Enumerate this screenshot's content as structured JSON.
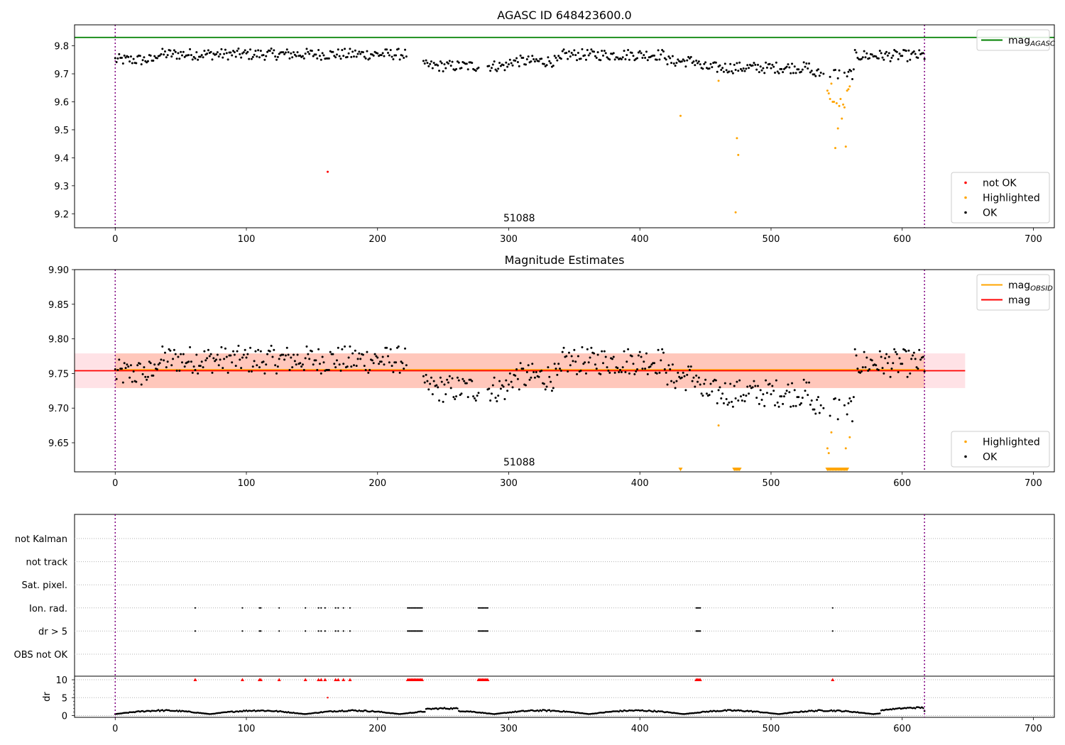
{
  "chart_data": [
    {
      "type": "scatter",
      "title": "AGASC ID 648423600.0",
      "xlim": [
        -31,
        716
      ],
      "ylim": [
        9.15,
        9.875
      ],
      "xticks": [
        0,
        100,
        200,
        300,
        400,
        500,
        600,
        700
      ],
      "yticks": [
        9.2,
        9.3,
        9.4,
        9.5,
        9.6,
        9.7,
        9.8
      ],
      "ytick_format": 1,
      "obs_boundaries": [
        0,
        617
      ],
      "obsid_label": {
        "text": "51088",
        "x": 308
      },
      "hlines": [
        {
          "name": "mag_AGASC",
          "y": 9.83,
          "color": "#008000"
        }
      ],
      "series": [
        {
          "name": "not OK",
          "color": "#ff0000",
          "x": [
            162
          ],
          "y": [
            9.35
          ]
        },
        {
          "name": "Highlighted",
          "color": "#ffa500",
          "x": [
            431,
            460,
            473,
            474,
            475,
            543,
            544,
            545,
            546,
            547,
            548,
            549,
            550,
            551,
            552,
            553,
            554,
            555,
            556,
            557,
            558,
            559,
            560
          ],
          "y": [
            9.55,
            9.675,
            9.205,
            9.47,
            9.41,
            9.64,
            9.63,
            9.61,
            9.665,
            9.6,
            9.6,
            9.435,
            9.595,
            9.505,
            9.585,
            9.61,
            9.54,
            9.59,
            9.58,
            9.44,
            9.64,
            9.645,
            9.655
          ]
        },
        {
          "name": "OK",
          "color": "#000000",
          "gen": "mag",
          "offset": 0
        }
      ],
      "legends": [
        {
          "corner": "top-right",
          "items": [
            {
              "label": "mag",
              "sub": "AGASC",
              "kind": "line",
              "color": "#008000"
            }
          ]
        },
        {
          "corner": "bottom-right",
          "items": [
            {
              "label": "not OK",
              "kind": "dot",
              "color": "#ff0000"
            },
            {
              "label": "Highlighted",
              "kind": "dot",
              "color": "#ffa500"
            },
            {
              "label": "OK",
              "kind": "dot",
              "color": "#000000"
            }
          ]
        }
      ]
    },
    {
      "type": "scatter",
      "title": "Magnitude Estimates",
      "xlim": [
        -31,
        716
      ],
      "ylim": [
        9.608,
        9.9
      ],
      "xticks": [
        0,
        100,
        200,
        300,
        400,
        500,
        600,
        700
      ],
      "yticks": [
        9.65,
        9.7,
        9.75,
        9.8,
        9.85,
        9.9
      ],
      "ytick_format": 2,
      "obs_boundaries": [
        0,
        617
      ],
      "obsid_label": {
        "text": "51088",
        "x": 308
      },
      "bands": [
        {
          "x0": -31,
          "x1": 648,
          "y0": 9.729,
          "y1": 9.779,
          "color": "#ffb6c1",
          "opacity": 0.4
        },
        {
          "x0": 0,
          "x1": 617,
          "y0": 9.729,
          "y1": 9.779,
          "color": "#ffa07a",
          "opacity": 0.4
        }
      ],
      "hlines": [
        {
          "name": "mag_OBSID",
          "y": 9.755,
          "x0": 0,
          "x1": 617,
          "color": "#ffa500",
          "width": 2.5
        },
        {
          "name": "mag",
          "y": 9.754,
          "x0": -31,
          "x1": 648,
          "color": "#ff0000",
          "width": 1.8
        }
      ],
      "series": [
        {
          "name": "Highlighted",
          "color": "#ffa500",
          "x": [
            460,
            543,
            544,
            546,
            557,
            560
          ],
          "y": [
            9.675,
            9.642,
            9.635,
            9.665,
            9.642,
            9.658
          ]
        },
        {
          "name": "Highlighted (below axis)",
          "color": "#ffa500",
          "marker": "tri-down",
          "x": [
            431,
            472,
            473,
            474,
            475,
            476,
            543,
            544,
            545,
            546,
            547,
            548,
            549,
            550,
            551,
            552,
            553,
            554,
            555,
            556,
            557,
            558
          ],
          "y": [
            9.611,
            9.611,
            9.611,
            9.611,
            9.611,
            9.611,
            9.611,
            9.611,
            9.611,
            9.611,
            9.611,
            9.611,
            9.611,
            9.611,
            9.611,
            9.611,
            9.611,
            9.611,
            9.611,
            9.611,
            9.611,
            9.611
          ]
        },
        {
          "name": "OK",
          "color": "#000000",
          "gen": "mag",
          "offset": 0
        }
      ],
      "legends": [
        {
          "corner": "top-right",
          "items": [
            {
              "label": "mag",
              "sub": "OBSID",
              "kind": "line",
              "color": "#ffa500"
            },
            {
              "label": "mag",
              "kind": "line",
              "color": "#ff0000"
            }
          ]
        },
        {
          "corner": "bottom-right",
          "items": [
            {
              "label": "Highlighted",
              "kind": "dot",
              "color": "#ffa500"
            },
            {
              "label": "OK",
              "kind": "dot",
              "color": "#000000"
            }
          ]
        }
      ]
    },
    {
      "type": "scatter",
      "title": "",
      "xlim": [
        -31,
        716
      ],
      "xticks": [
        0,
        100,
        200,
        300,
        400,
        500,
        600,
        700
      ],
      "obs_boundaries": [
        0,
        617
      ],
      "flag_rows": [
        "not Kalman",
        "not track",
        "Sat. pixel.",
        "Ion. rad.",
        "dr > 5",
        "OBS not OK"
      ],
      "flag_x": [
        61,
        97,
        110,
        111,
        125,
        145,
        155,
        157,
        160,
        168,
        170,
        174,
        179,
        223,
        224,
        225,
        226,
        227,
        228,
        229,
        230,
        231,
        232,
        233,
        234,
        277,
        278,
        279,
        280,
        281,
        282,
        283,
        284,
        443,
        444,
        445,
        446,
        547
      ],
      "flag_rows_marked": [
        "Ion. rad.",
        "dr > 5"
      ],
      "dr_panel": {
        "ylabel": "dr",
        "ylim": [
          -0.5,
          11
        ],
        "yticks": [
          0,
          5,
          10
        ],
        "threshold": 10,
        "flag_color": "#ff0000",
        "outliers": {
          "x": [
            162
          ],
          "y": [
            5
          ]
        }
      }
    }
  ]
}
